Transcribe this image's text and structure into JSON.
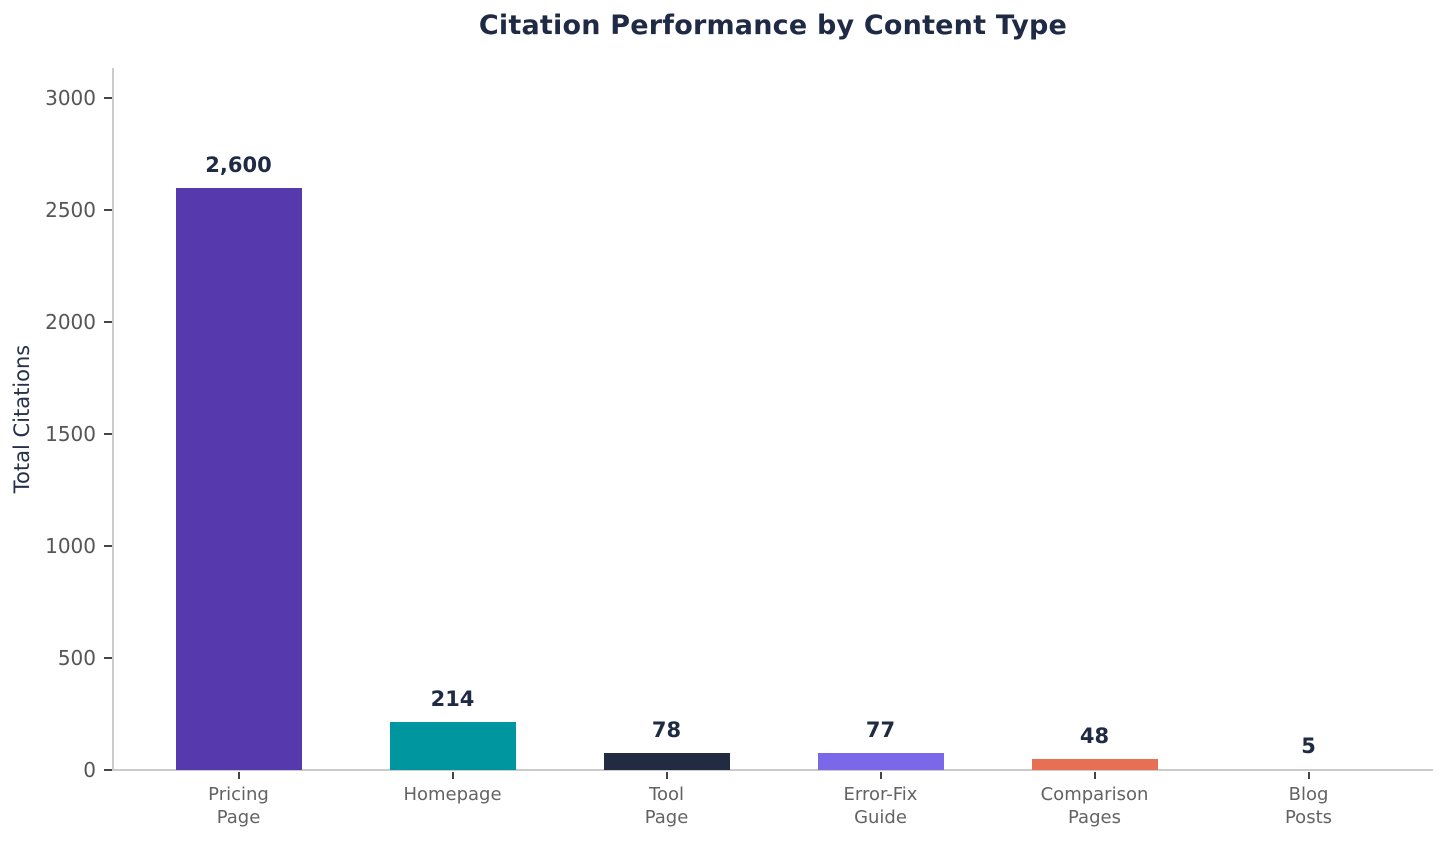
{
  "title": "Citation Performance by Content Type",
  "chart_data": {
    "type": "bar",
    "title": "Citation Performance by Content Type",
    "xlabel": "",
    "ylabel": "Total Citations",
    "categories": [
      "Pricing\nPage",
      "Homepage",
      "Tool\nPage",
      "Error-Fix\nGuide",
      "Comparison\nPages",
      "Blog\nPosts"
    ],
    "values": [
      2600,
      214,
      78,
      77,
      48,
      5
    ],
    "value_labels": [
      "2,600",
      "214",
      "78",
      "77",
      "48",
      "5"
    ],
    "bar_colors": [
      "#5639ac",
      "#0096a0",
      "#232b42",
      "#7a68e8",
      "#e76f54",
      "#c9c9c9"
    ],
    "ylim": [
      0,
      3000
    ],
    "yticks": [
      0,
      500,
      1000,
      1500,
      2000,
      2500,
      3000
    ],
    "grid": false,
    "legend": null
  },
  "colors": {
    "title_text": "#1f2a44",
    "value_label_text": "#1f2a44",
    "axis_label_text": "#273149",
    "tick_label_text": "#565656",
    "spine": "#cbcbcb",
    "background": "#ffffff"
  }
}
